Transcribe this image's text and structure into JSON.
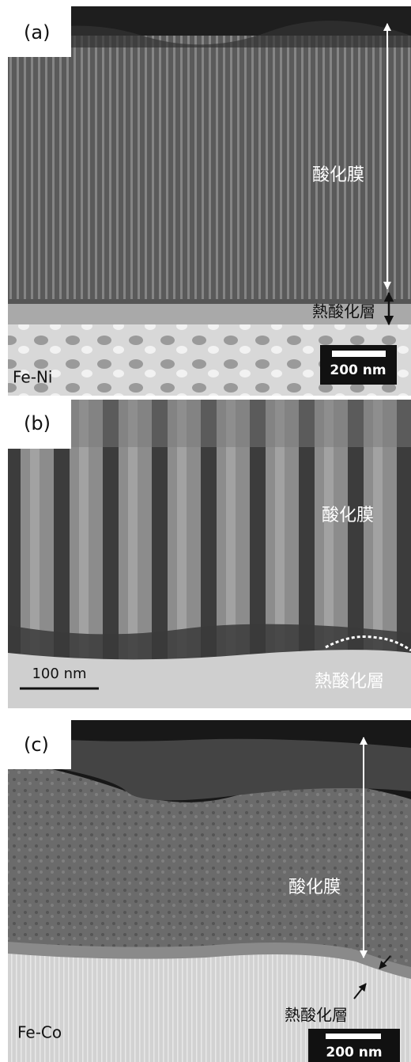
{
  "panels": [
    {
      "label": "(a)",
      "film": "酸化膜",
      "layer": "熱酸化層",
      "alloy": "Fe-Ni",
      "scale": "200 nm"
    },
    {
      "label": "(b)",
      "film": "酸化膜",
      "layer": "熱酸化層",
      "scale": "100 nm"
    },
    {
      "label": "(c)",
      "film": "酸化膜",
      "layer": "熱酸化層",
      "alloy": "Fe-Co",
      "scale": "200 nm"
    }
  ]
}
